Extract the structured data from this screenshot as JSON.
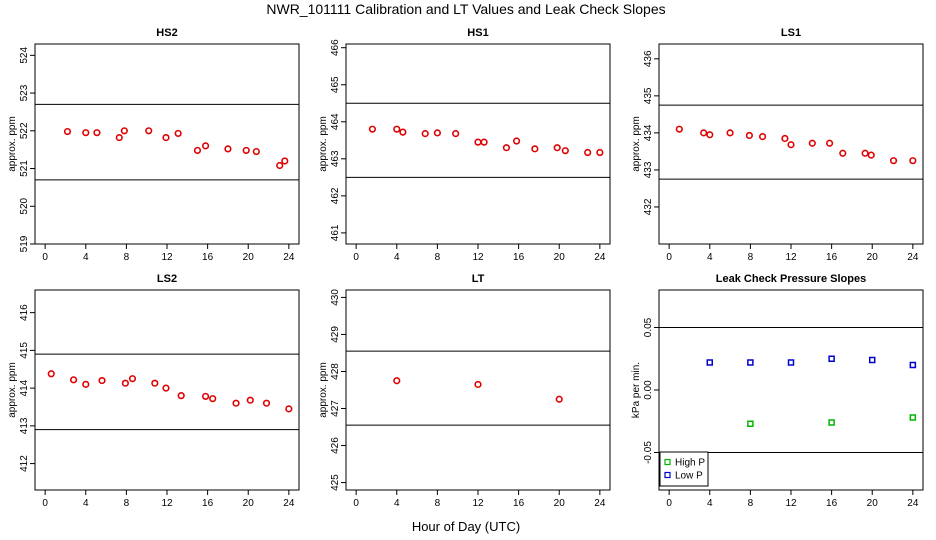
{
  "title": "NWR_101111  Calibration and LT Values and Leak Check Slopes",
  "xlabel": "Hour of Day (UTC)",
  "chart_data": [
    {
      "type": "scatter",
      "title": "HS2",
      "ylabel": "approx. ppm",
      "xlim": [
        -1,
        25
      ],
      "ylim": [
        519,
        524.3
      ],
      "xticks": [
        0,
        4,
        8,
        12,
        16,
        20,
        24
      ],
      "yticks": [
        519,
        520,
        521,
        522,
        523,
        524
      ],
      "hlines": [
        522.7,
        520.7
      ],
      "series": [
        {
          "color": "#e00000",
          "marker": "circle",
          "x": [
            2.2,
            4.0,
            5.1,
            7.3,
            7.8,
            10.2,
            11.9,
            13.1,
            15.0,
            15.8,
            18.0,
            19.8,
            20.8,
            23.1,
            23.6
          ],
          "y": [
            521.98,
            521.95,
            521.95,
            521.82,
            522.0,
            522.0,
            521.82,
            521.93,
            521.48,
            521.6,
            521.52,
            521.48,
            521.45,
            521.08,
            521.2
          ]
        }
      ]
    },
    {
      "type": "scatter",
      "title": "HS1",
      "ylabel": "approx. ppm",
      "xlim": [
        -1,
        25
      ],
      "ylim": [
        460.7,
        466.1
      ],
      "xticks": [
        0,
        4,
        8,
        12,
        16,
        20,
        24
      ],
      "yticks": [
        461,
        462,
        463,
        464,
        465,
        466
      ],
      "hlines": [
        464.5,
        462.5
      ],
      "series": [
        {
          "color": "#e00000",
          "marker": "circle",
          "x": [
            1.6,
            4.0,
            4.6,
            6.8,
            8.0,
            9.8,
            12.0,
            12.6,
            14.8,
            15.8,
            17.6,
            19.8,
            20.6,
            22.8,
            24.0
          ],
          "y": [
            463.8,
            463.8,
            463.72,
            463.68,
            463.7,
            463.68,
            463.45,
            463.45,
            463.3,
            463.48,
            463.27,
            463.3,
            463.22,
            463.17,
            463.17
          ]
        }
      ]
    },
    {
      "type": "scatter",
      "title": "LS1",
      "ylabel": "approx. ppm",
      "xlim": [
        -1,
        25
      ],
      "ylim": [
        431,
        436.4
      ],
      "xticks": [
        0,
        4,
        8,
        12,
        16,
        20,
        24
      ],
      "yticks": [
        432,
        433,
        434,
        435,
        436
      ],
      "hlines": [
        434.75,
        432.75
      ],
      "series": [
        {
          "color": "#e00000",
          "marker": "circle",
          "x": [
            1.0,
            3.4,
            4.0,
            6.0,
            7.9,
            9.2,
            11.4,
            12.0,
            14.1,
            15.8,
            17.1,
            19.3,
            19.9,
            22.1,
            24.0
          ],
          "y": [
            434.1,
            434.0,
            433.95,
            434.0,
            433.93,
            433.9,
            433.85,
            433.68,
            433.72,
            433.72,
            433.45,
            433.45,
            433.4,
            433.25,
            433.25
          ]
        }
      ]
    },
    {
      "type": "scatter",
      "title": "LS2",
      "ylabel": "approx. ppm",
      "xlim": [
        -1,
        25
      ],
      "ylim": [
        411.3,
        416.6
      ],
      "xticks": [
        0,
        4,
        8,
        12,
        16,
        20,
        24
      ],
      "yticks": [
        412,
        413,
        414,
        415,
        416
      ],
      "hlines": [
        414.9,
        412.9
      ],
      "series": [
        {
          "color": "#e00000",
          "marker": "circle",
          "x": [
            0.6,
            2.8,
            4.0,
            5.6,
            7.9,
            8.6,
            10.8,
            11.9,
            13.4,
            15.8,
            16.5,
            18.8,
            20.2,
            21.8,
            24.0
          ],
          "y": [
            414.38,
            414.22,
            414.1,
            414.2,
            414.13,
            414.25,
            414.13,
            414.0,
            413.8,
            413.78,
            413.72,
            413.6,
            413.68,
            413.6,
            413.45
          ]
        }
      ]
    },
    {
      "type": "scatter",
      "title": "LT",
      "ylabel": "approx. ppm",
      "xlim": [
        -1,
        25
      ],
      "ylim": [
        424.8,
        430.2
      ],
      "xticks": [
        0,
        4,
        8,
        12,
        16,
        20,
        24
      ],
      "yticks": [
        425,
        426,
        427,
        428,
        429,
        430
      ],
      "hlines": [
        428.55,
        426.55
      ],
      "series": [
        {
          "color": "#e00000",
          "marker": "circle",
          "x": [
            4.0,
            12.0,
            20.0
          ],
          "y": [
            427.75,
            427.65,
            427.25
          ]
        }
      ]
    },
    {
      "type": "scatter",
      "title": "Leak Check Pressure Slopes",
      "ylabel": "kPa per min.",
      "xlim": [
        -1,
        25
      ],
      "ylim": [
        -0.08,
        0.08
      ],
      "xticks": [
        0,
        4,
        8,
        12,
        16,
        20,
        24
      ],
      "yticks": [
        -0.05,
        0.0,
        0.05
      ],
      "ytick_labels": [
        "-0.05",
        "0.00",
        "0.05"
      ],
      "hlines": [
        0.05,
        -0.05
      ],
      "legend": "bottom-left",
      "series": [
        {
          "name": "High P",
          "color": "#00b400",
          "marker": "square",
          "x": [
            8.0,
            16.0,
            24.0
          ],
          "y": [
            -0.027,
            -0.026,
            -0.022
          ]
        },
        {
          "name": "Low P",
          "color": "#0000d0",
          "marker": "square",
          "x": [
            4.0,
            8.0,
            12.0,
            16.0,
            20.0,
            24.0
          ],
          "y": [
            0.022,
            0.022,
            0.022,
            0.025,
            0.024,
            0.02
          ]
        }
      ]
    }
  ]
}
